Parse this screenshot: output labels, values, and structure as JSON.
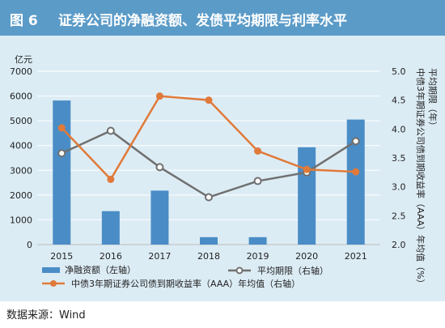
{
  "figure": {
    "number": "图 6",
    "title": "证券公司的净融资额、发债平均期限与利率水平"
  },
  "source": "数据来源：Wind",
  "chart_data": {
    "type": "bar+line",
    "categories": [
      "2015",
      "2016",
      "2017",
      "2018",
      "2019",
      "2020",
      "2021"
    ],
    "left_axis": {
      "unit": "亿元",
      "ylim": [
        0,
        7000
      ],
      "ticks": [
        "0",
        "1000",
        "2000",
        "3000",
        "4000",
        "5000",
        "6000",
        "7000"
      ]
    },
    "right_axis": {
      "ylim": [
        2.0,
        5.0
      ],
      "ticks": [
        "2.0",
        "2.5",
        "3.0",
        "3.5",
        "4.0",
        "4.5",
        "5.0"
      ],
      "label_outer": "中债3年期证券公司债到期收益率（AAA）年均值（%）",
      "label_inner": "平均期限（年）"
    },
    "series": [
      {
        "name": "净融资额（左轴）",
        "kind": "bar",
        "axis": "left",
        "color": "#4a8dc6",
        "values": [
          5820,
          1350,
          2180,
          300,
          300,
          3930,
          5050
        ]
      },
      {
        "name": "平均期限（右轴）",
        "kind": "line",
        "axis": "right",
        "color": "#707070",
        "values": [
          3.58,
          3.97,
          3.34,
          2.82,
          3.1,
          3.25,
          3.79
        ]
      },
      {
        "name": "中债3年期证券公司债到期收益率（AAA）年均值（右轴）",
        "kind": "line",
        "axis": "right",
        "color": "#e07a3a",
        "values": [
          4.02,
          3.13,
          4.57,
          4.5,
          3.62,
          3.3,
          3.26
        ]
      }
    ],
    "grid": true
  }
}
